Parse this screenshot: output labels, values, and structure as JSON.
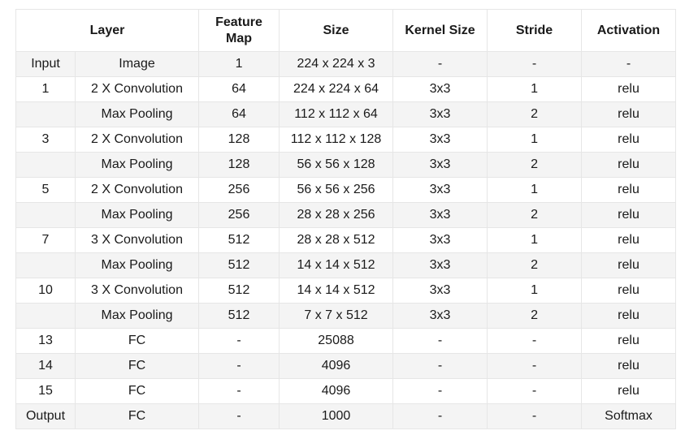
{
  "table": {
    "headers": {
      "layer": "Layer",
      "feature_map_line1": "Feature",
      "feature_map_line2": "Map",
      "size": "Size",
      "kernel_size": "Kernel Size",
      "stride": "Stride",
      "activation": "Activation"
    },
    "rows": [
      {
        "layer": "Input",
        "type": "Image",
        "feature_map": "1",
        "size": "224 x 224 x 3",
        "kernel": "-",
        "stride": "-",
        "activation": "-"
      },
      {
        "layer": "1",
        "type": "2 X Convolution",
        "feature_map": "64",
        "size": "224 x 224 x 64",
        "kernel": "3x3",
        "stride": "1",
        "activation": "relu"
      },
      {
        "layer": "",
        "type": "Max Pooling",
        "feature_map": "64",
        "size": "112 x 112 x 64",
        "kernel": "3x3",
        "stride": "2",
        "activation": "relu"
      },
      {
        "layer": "3",
        "type": "2 X Convolution",
        "feature_map": "128",
        "size": "112 x 112 x 128",
        "kernel": "3x3",
        "stride": "1",
        "activation": "relu"
      },
      {
        "layer": "",
        "type": "Max Pooling",
        "feature_map": "128",
        "size": "56 x 56 x 128",
        "kernel": "3x3",
        "stride": "2",
        "activation": "relu"
      },
      {
        "layer": "5",
        "type": "2 X Convolution",
        "feature_map": "256",
        "size": "56 x 56 x 256",
        "kernel": "3x3",
        "stride": "1",
        "activation": "relu"
      },
      {
        "layer": "",
        "type": "Max Pooling",
        "feature_map": "256",
        "size": "28 x 28 x 256",
        "kernel": "3x3",
        "stride": "2",
        "activation": "relu"
      },
      {
        "layer": "7",
        "type": "3 X Convolution",
        "feature_map": "512",
        "size": "28 x 28 x 512",
        "kernel": "3x3",
        "stride": "1",
        "activation": "relu"
      },
      {
        "layer": "",
        "type": "Max Pooling",
        "feature_map": "512",
        "size": "14 x 14 x 512",
        "kernel": "3x3",
        "stride": "2",
        "activation": "relu"
      },
      {
        "layer": "10",
        "type": "3 X Convolution",
        "feature_map": "512",
        "size": "14 x 14 x 512",
        "kernel": "3x3",
        "stride": "1",
        "activation": "relu"
      },
      {
        "layer": "",
        "type": "Max Pooling",
        "feature_map": "512",
        "size": "7 x 7 x 512",
        "kernel": "3x3",
        "stride": "2",
        "activation": "relu"
      },
      {
        "layer": "13",
        "type": "FC",
        "feature_map": "-",
        "size": "25088",
        "kernel": "-",
        "stride": "-",
        "activation": "relu"
      },
      {
        "layer": "14",
        "type": "FC",
        "feature_map": "-",
        "size": "4096",
        "kernel": "-",
        "stride": "-",
        "activation": "relu"
      },
      {
        "layer": "15",
        "type": "FC",
        "feature_map": "-",
        "size": "4096",
        "kernel": "-",
        "stride": "-",
        "activation": "relu"
      },
      {
        "layer": "Output",
        "type": "FC",
        "feature_map": "-",
        "size": "1000",
        "kernel": "-",
        "stride": "-",
        "activation": "Softmax"
      }
    ]
  }
}
